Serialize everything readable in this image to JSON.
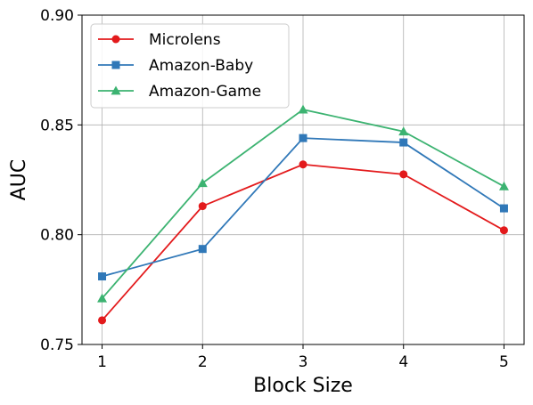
{
  "chart_data": {
    "type": "line",
    "x": [
      1,
      2,
      3,
      4,
      5
    ],
    "xlabel": "Block Size",
    "ylabel": "AUC",
    "xlim": [
      0.8,
      5.2
    ],
    "ylim": [
      0.75,
      0.9
    ],
    "xticks": [
      "1",
      "2",
      "3",
      "4",
      "5"
    ],
    "yticks": [
      "0.75",
      "0.80",
      "0.85",
      "0.90"
    ],
    "grid": true,
    "legend_position": "top-left",
    "series": [
      {
        "name": "Microlens",
        "color": "#e31a1c",
        "marker": "circle",
        "values": [
          0.761,
          0.813,
          0.832,
          0.8275,
          0.802
        ]
      },
      {
        "name": "Amazon-Baby",
        "color": "#3078b8",
        "marker": "square",
        "values": [
          0.781,
          0.7935,
          0.844,
          0.842,
          0.812
        ]
      },
      {
        "name": "Amazon-Game",
        "color": "#3cb371",
        "marker": "triangle",
        "values": [
          0.771,
          0.8235,
          0.857,
          0.847,
          0.822
        ]
      }
    ]
  }
}
